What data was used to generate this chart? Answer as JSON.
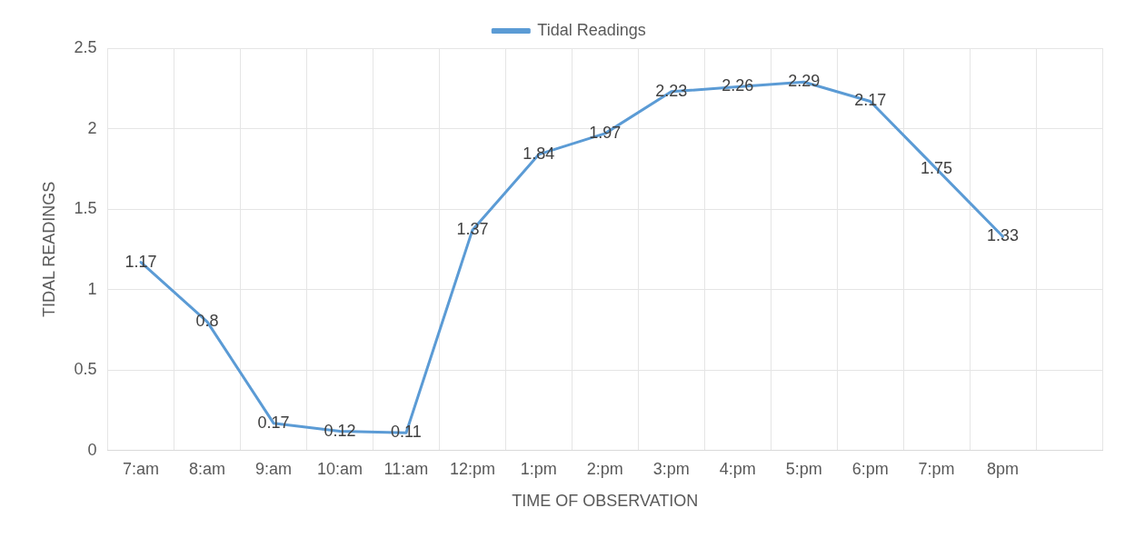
{
  "chart_data": {
    "type": "line",
    "xlabel": "TIME OF OBSERVATION",
    "ylabel": "TIDAL READINGS",
    "categories": [
      "7:am",
      "8:am",
      "9:am",
      "10:am",
      "11:am",
      "12:pm",
      "1:pm",
      "2:pm",
      "3:pm",
      "4:pm",
      "5:pm",
      "6:pm",
      "7:pm",
      "8pm",
      null
    ],
    "series": [
      {
        "name": "Tidal Readings",
        "color": "#5b9bd5",
        "values": [
          1.17,
          0.8,
          0.17,
          0.12,
          0.11,
          1.37,
          1.84,
          1.97,
          2.23,
          2.26,
          2.29,
          2.17,
          1.75,
          1.33,
          null
        ]
      }
    ],
    "ylim": [
      0,
      2.5
    ],
    "yticks": [
      0,
      0.5,
      1,
      1.5,
      2,
      2.5
    ],
    "grid": true,
    "legend": "top",
    "marker": "none",
    "line_style": "solid",
    "data_labels": true
  }
}
